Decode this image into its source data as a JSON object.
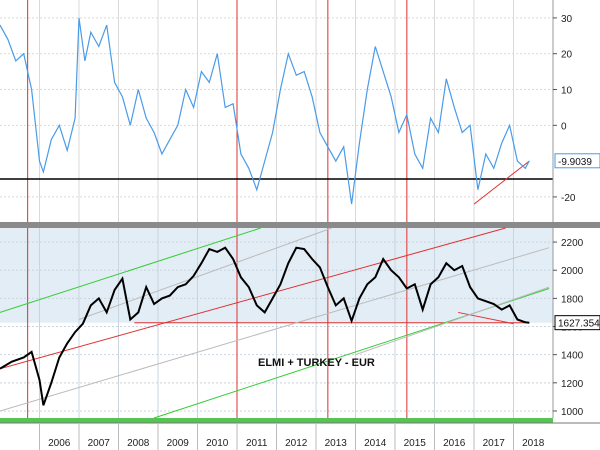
{
  "chart_data": [
    {
      "type": "line",
      "panel": "top",
      "title": "",
      "xlabel": "",
      "ylabel": "",
      "ylim": [
        -27,
        35
      ],
      "yticks": [
        30,
        20,
        10,
        0,
        -20
      ],
      "grid": true,
      "colors": {
        "line": "#4a9be8",
        "trend": "#e03030",
        "baseline": "#000000"
      },
      "last_value_label": "-9.9039",
      "reference_level": -15,
      "series": [
        {
          "x": [
            2005.0,
            2005.2,
            2005.4,
            2005.6,
            2005.8,
            2006.0,
            2006.1,
            2006.3,
            2006.5,
            2006.7,
            2006.9,
            2007.0,
            2007.15,
            2007.3,
            2007.5,
            2007.7,
            2007.9,
            2008.1,
            2008.3,
            2008.5,
            2008.7,
            2008.9,
            2009.1,
            2009.3,
            2009.5,
            2009.7,
            2009.9,
            2010.1,
            2010.3,
            2010.5,
            2010.7,
            2010.9,
            2011.1,
            2011.3,
            2011.5,
            2011.7,
            2011.9,
            2012.1,
            2012.3,
            2012.5,
            2012.7,
            2012.9,
            2013.1,
            2013.3,
            2013.5,
            2013.7,
            2013.9,
            2014.1,
            2014.3,
            2014.5,
            2014.7,
            2014.9,
            2015.1,
            2015.3,
            2015.5,
            2015.7,
            2015.9,
            2016.1,
            2016.3,
            2016.5,
            2016.7,
            2016.9,
            2017.1,
            2017.3,
            2017.5,
            2017.7,
            2017.9,
            2018.1,
            2018.3,
            2018.4
          ],
          "y": [
            28,
            24,
            18,
            20,
            10,
            -10,
            -13,
            -4,
            0,
            -7,
            2,
            30,
            18,
            26,
            22,
            28,
            12,
            8,
            0,
            10,
            2,
            -2,
            -8,
            -4,
            0,
            10,
            5,
            15,
            12,
            20,
            5,
            6,
            -8,
            -12,
            -18,
            -10,
            -2,
            10,
            20,
            14,
            15,
            8,
            -2,
            -6,
            -10,
            -6,
            -22,
            -5,
            10,
            22,
            15,
            8,
            -2,
            3,
            -8,
            -12,
            2,
            -2,
            13,
            5,
            -2,
            0,
            -18,
            -8,
            -12,
            -5,
            0,
            -10,
            -12,
            -9.9039
          ]
        }
      ],
      "trendline": {
        "x": [
          2017.0,
          2018.4
        ],
        "y": [
          -22,
          -10
        ]
      }
    },
    {
      "type": "line",
      "panel": "bottom",
      "title": "",
      "xlabel": "",
      "ylabel": "",
      "ylim": [
        950,
        2300
      ],
      "yticks": [
        2200,
        2000,
        1800,
        1600,
        1400,
        1200,
        1000
      ],
      "grid": true,
      "colors": {
        "line": "#000000",
        "channel_red": "#e03030",
        "channel_green": "#33cc33",
        "channel_grey": "#bbbbbb",
        "band": "#dce8f2"
      },
      "annotation": "ELMI + TURKEY - EUR",
      "last_value_label": "1627.354",
      "support_level": 1627.354,
      "series": [
        {
          "x": [
            2005.0,
            2005.3,
            2005.6,
            2005.8,
            2006.0,
            2006.1,
            2006.3,
            2006.5,
            2006.7,
            2006.9,
            2007.1,
            2007.3,
            2007.5,
            2007.7,
            2007.9,
            2008.1,
            2008.3,
            2008.5,
            2008.7,
            2008.9,
            2009.1,
            2009.3,
            2009.5,
            2009.7,
            2009.9,
            2010.1,
            2010.3,
            2010.5,
            2010.7,
            2010.9,
            2011.1,
            2011.3,
            2011.5,
            2011.7,
            2011.9,
            2012.1,
            2012.3,
            2012.5,
            2012.7,
            2012.9,
            2013.1,
            2013.3,
            2013.5,
            2013.7,
            2013.9,
            2014.1,
            2014.3,
            2014.5,
            2014.7,
            2014.9,
            2015.1,
            2015.3,
            2015.5,
            2015.7,
            2015.9,
            2016.1,
            2016.3,
            2016.5,
            2016.7,
            2016.9,
            2017.1,
            2017.3,
            2017.5,
            2017.7,
            2017.9,
            2018.1,
            2018.3,
            2018.4
          ],
          "y": [
            1300,
            1350,
            1380,
            1420,
            1220,
            1040,
            1200,
            1380,
            1480,
            1560,
            1620,
            1750,
            1800,
            1700,
            1860,
            1940,
            1650,
            1700,
            1880,
            1760,
            1800,
            1820,
            1880,
            1900,
            1960,
            2050,
            2150,
            2130,
            2160,
            2080,
            1950,
            1880,
            1750,
            1700,
            1800,
            1900,
            2050,
            2160,
            2150,
            2080,
            2020,
            1880,
            1750,
            1800,
            1640,
            1800,
            1900,
            1950,
            2080,
            2000,
            1950,
            1870,
            1900,
            1720,
            1900,
            1950,
            2050,
            2000,
            2030,
            1880,
            1800,
            1780,
            1760,
            1720,
            1750,
            1650,
            1630,
            1627.354
          ]
        }
      ],
      "channels": [
        {
          "color": "red",
          "x": [
            2005.0,
            2017.8
          ],
          "y": [
            1300,
            2300
          ]
        },
        {
          "color": "red",
          "x": [
            2008.4,
            2018.4
          ],
          "y": [
            1627,
            1627
          ]
        },
        {
          "color": "red",
          "x": [
            2016.6,
            2018.0
          ],
          "y": [
            1700,
            1620
          ]
        },
        {
          "color": "green",
          "x": [
            2005.0,
            2011.6
          ],
          "y": [
            1700,
            2300
          ]
        },
        {
          "color": "green",
          "x": [
            2008.9,
            2018.9
          ],
          "y": [
            950,
            1870
          ]
        },
        {
          "color": "grey",
          "x": [
            2007.0,
            2013.4
          ],
          "y": [
            1650,
            2300
          ]
        },
        {
          "color": "grey",
          "x": [
            2005.0,
            2018.9
          ],
          "y": [
            1000,
            2160
          ]
        },
        {
          "color": "grey",
          "x": [
            2014.0,
            2018.9
          ],
          "y": [
            1400,
            1880
          ]
        }
      ]
    }
  ],
  "x_axis": {
    "type": "date",
    "range": [
      2005.0,
      2019.0
    ],
    "ticks": [
      "2006",
      "2007",
      "2008",
      "2009",
      "2010",
      "2011",
      "2012",
      "2013",
      "2014",
      "2015",
      "2016",
      "2017",
      "2018"
    ],
    "event_lines_x": [
      2005.7,
      2011.0,
      2013.3,
      2015.3
    ]
  }
}
